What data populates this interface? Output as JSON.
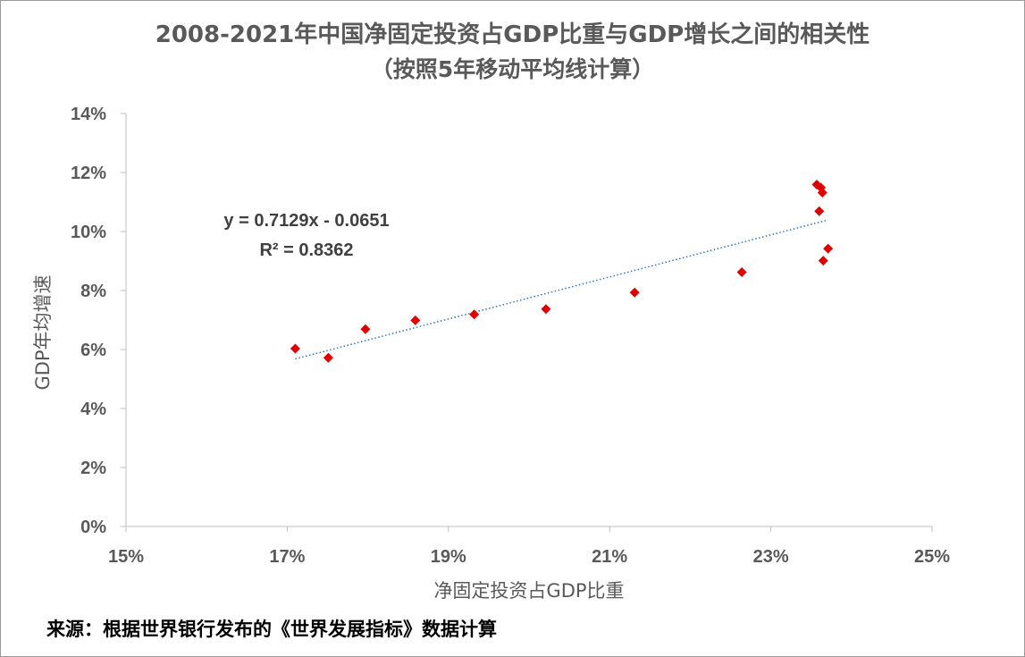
{
  "colors": {
    "marker": "#e00000",
    "trendline": "#2e75b6",
    "axis": "#bfbfbf",
    "text": "#595959"
  },
  "chart_data": {
    "type": "scatter",
    "title": "2008-2021年中国净固定投资占GDP比重与GDP增长之间的相关性",
    "subtitle": "（按照5年移动平均线计算）",
    "xlabel": "净固定投资占GDP比重",
    "ylabel": "GDP年均增速",
    "xlim": [
      0.15,
      0.25
    ],
    "ylim": [
      0,
      0.14
    ],
    "x_ticks": [
      "15%",
      "17%",
      "19%",
      "21%",
      "23%",
      "25%"
    ],
    "y_ticks": [
      "0%",
      "2%",
      "4%",
      "6%",
      "8%",
      "10%",
      "12%",
      "14%"
    ],
    "grid": false,
    "legend": "none",
    "series": [
      {
        "marker": "diamond",
        "points": [
          {
            "x": 0.171,
            "y": 0.0603
          },
          {
            "x": 0.1751,
            "y": 0.0572
          },
          {
            "x": 0.1797,
            "y": 0.0669
          },
          {
            "x": 0.1859,
            "y": 0.0699
          },
          {
            "x": 0.1932,
            "y": 0.0719
          },
          {
            "x": 0.2021,
            "y": 0.0737
          },
          {
            "x": 0.2131,
            "y": 0.0793
          },
          {
            "x": 0.2264,
            "y": 0.0862
          },
          {
            "x": 0.2357,
            "y": 0.1159
          },
          {
            "x": 0.2362,
            "y": 0.1149
          },
          {
            "x": 0.2364,
            "y": 0.1132
          },
          {
            "x": 0.236,
            "y": 0.1069
          },
          {
            "x": 0.2371,
            "y": 0.0942
          },
          {
            "x": 0.2365,
            "y": 0.0901
          }
        ]
      }
    ],
    "trendline": {
      "type": "linear",
      "slope": 0.7129,
      "intercept": -0.0651,
      "x_range": [
        0.171,
        0.2371
      ],
      "equation": "y = 0.7129x - 0.0651",
      "r2_label": "R² = 0.8362"
    }
  },
  "source": "来源：根据世界银行发布的《世界发展指标》数据计算"
}
